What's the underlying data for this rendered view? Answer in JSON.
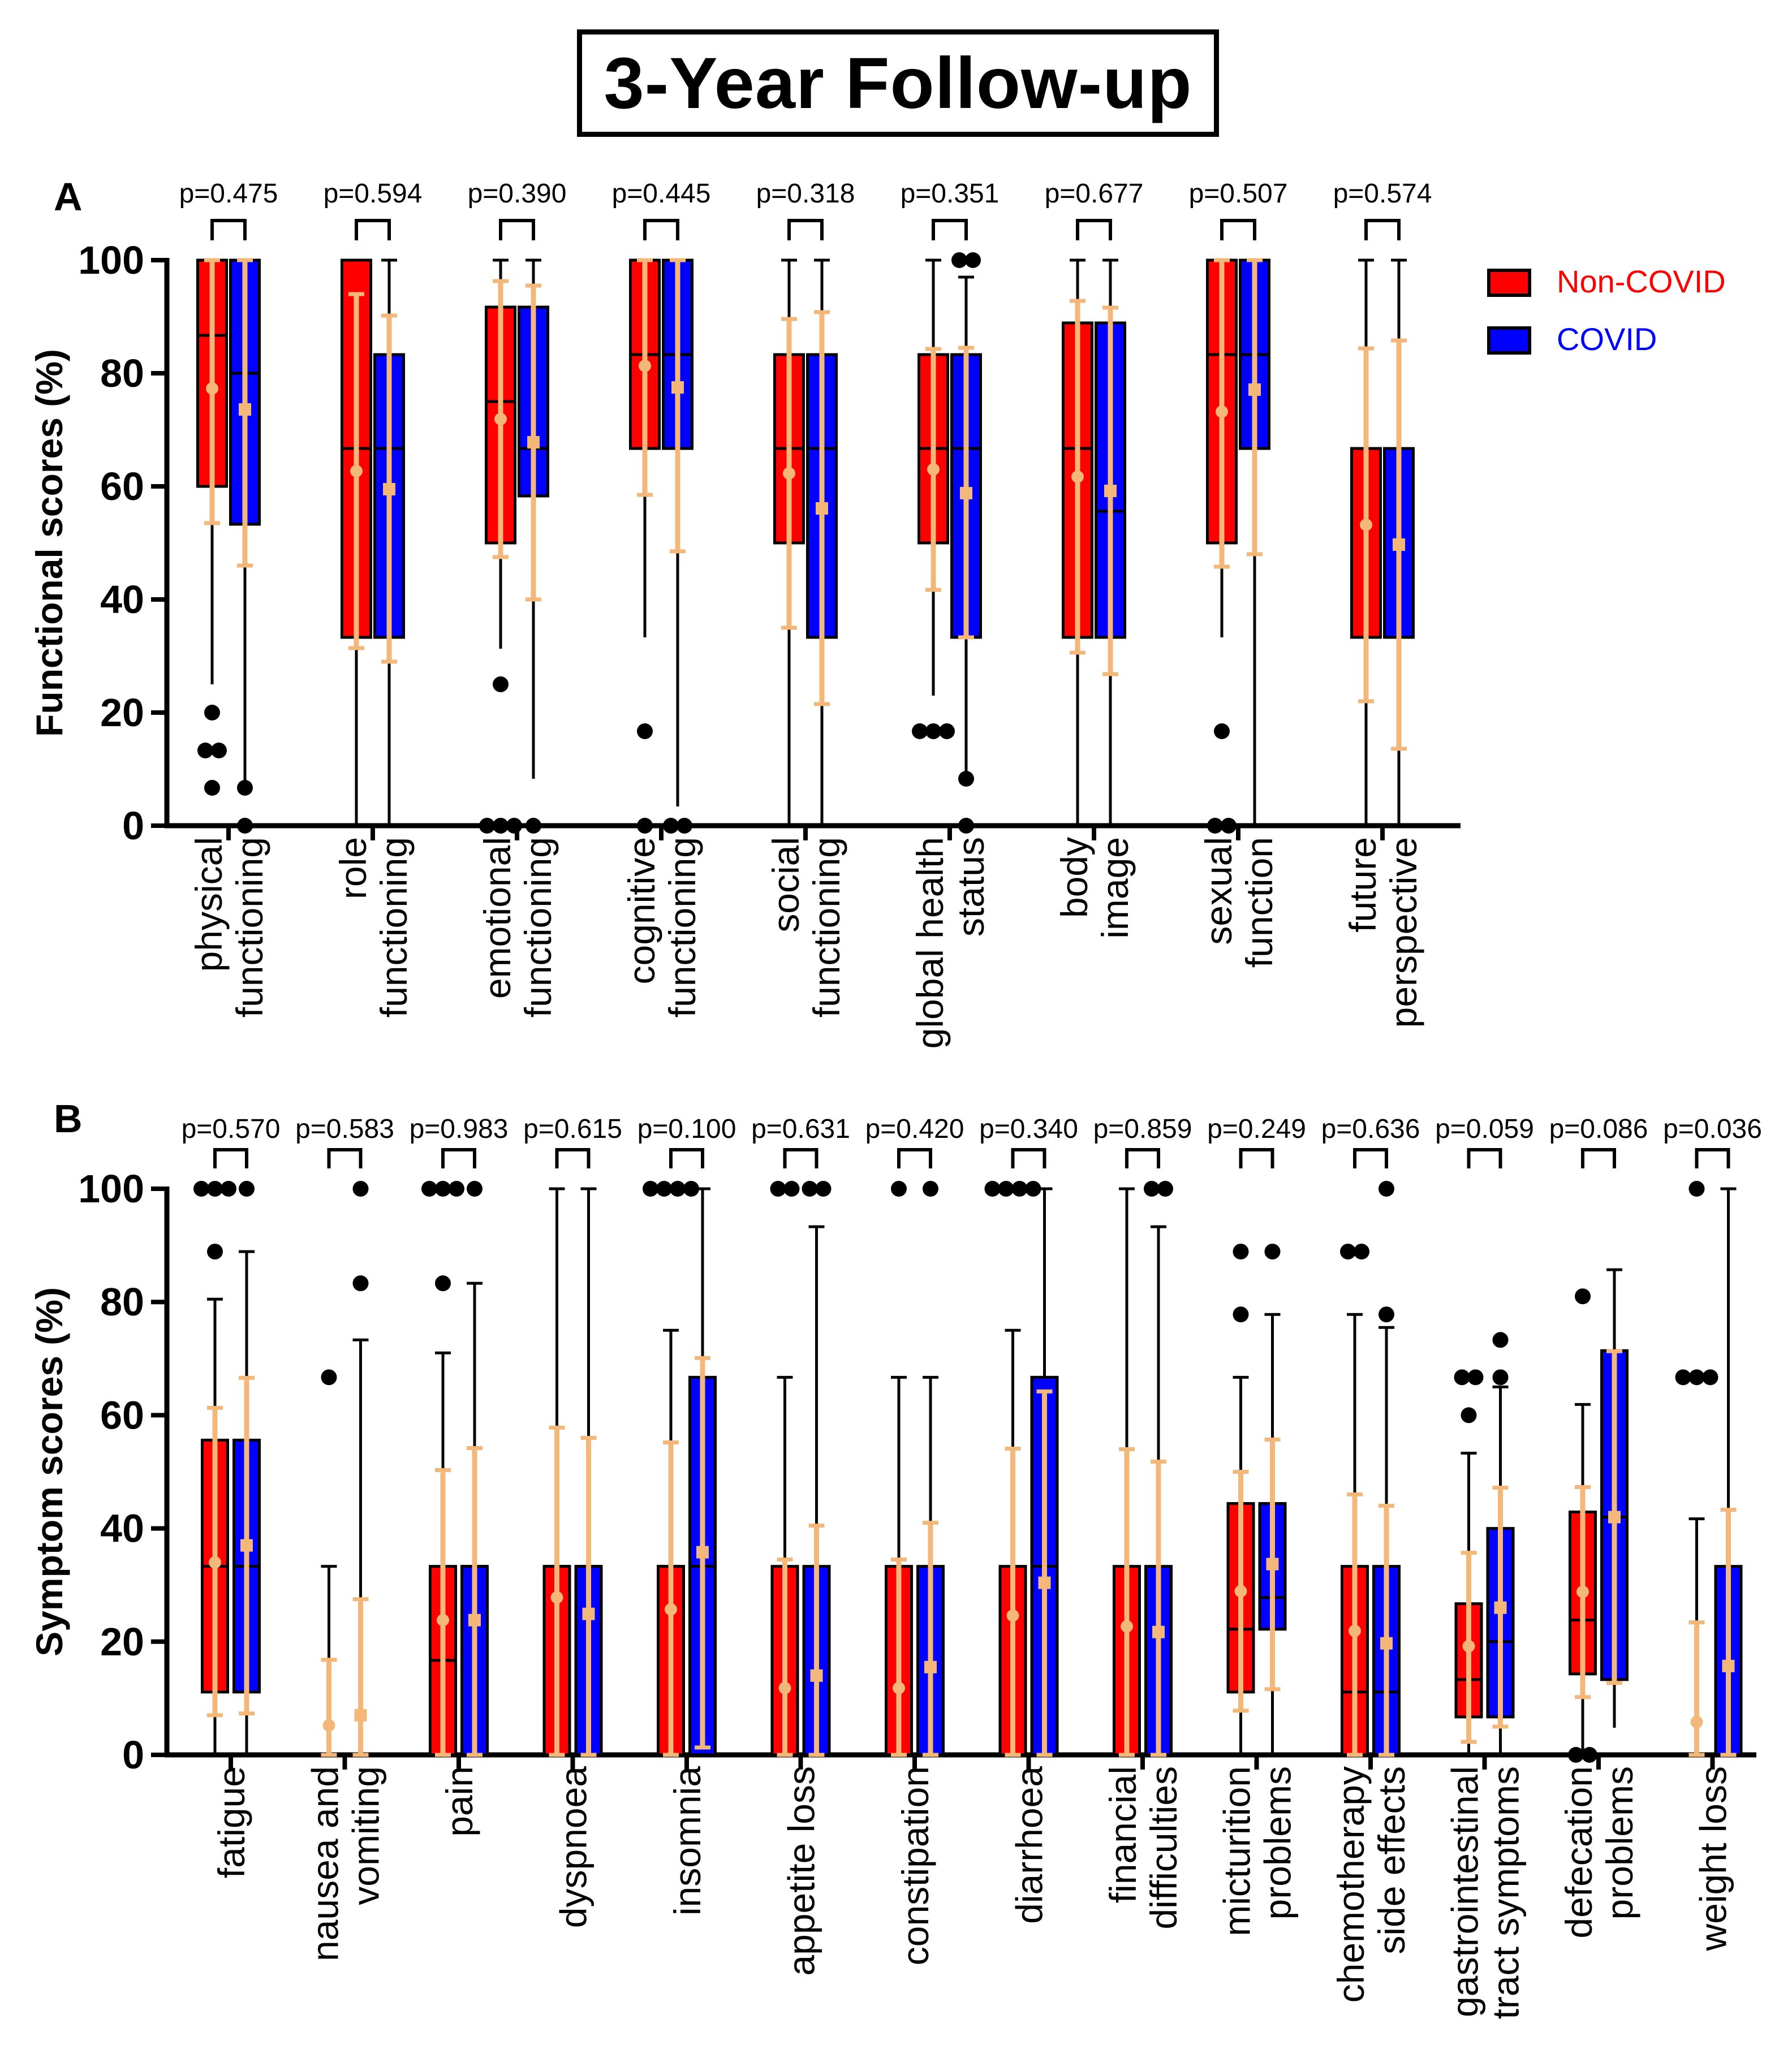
{
  "figure_title": "3-Year Follow-up",
  "colors": {
    "non_covid": "#ff0000",
    "covid": "#0000ff",
    "mean_sd": "#f2b779",
    "whisker": "#000000",
    "outlier": "#000000"
  },
  "legend": {
    "non_covid": "Non-COVID",
    "covid": "COVID"
  },
  "chart_data": [
    {
      "panel": "A",
      "type": "box",
      "ylabel": "Functional scores (%)",
      "ylim": [
        0,
        100
      ],
      "yticks": [
        0,
        20,
        40,
        60,
        80,
        100
      ],
      "legend_position": "top-right",
      "categories": [
        {
          "label": [
            "physical",
            "functioning"
          ],
          "p": "p=0.475",
          "non_covid": {
            "q1": 60,
            "median": 86.7,
            "q3": 100,
            "wlo": 25,
            "whi": 100,
            "mean": 77.3,
            "sdlo": 53.5,
            "sdhi": 100,
            "outliers": [
              20,
              13.3,
              13.3,
              6.7
            ]
          },
          "covid": {
            "q1": 53.3,
            "median": 80,
            "q3": 100,
            "wlo": 8,
            "whi": 100,
            "mean": 73.6,
            "sdlo": 46,
            "sdhi": 100,
            "outliers": [
              6.7,
              0
            ]
          }
        },
        {
          "label": [
            "role",
            "functioning"
          ],
          "p": "p=0.594",
          "non_covid": {
            "q1": 33.3,
            "median": 66.7,
            "q3": 100,
            "wlo": 0,
            "whi": 100,
            "mean": 62.7,
            "sdlo": 31.4,
            "sdhi": 94,
            "outliers": []
          },
          "covid": {
            "q1": 33.3,
            "median": 66.7,
            "q3": 83.3,
            "wlo": 0,
            "whi": 100,
            "mean": 59.5,
            "sdlo": 29,
            "sdhi": 90.2,
            "outliers": []
          }
        },
        {
          "label": [
            "emotional",
            "functioning"
          ],
          "p": "p=0.390",
          "non_covid": {
            "q1": 50,
            "median": 75,
            "q3": 91.7,
            "wlo": 31.3,
            "whi": 100,
            "mean": 71.9,
            "sdlo": 47.5,
            "sdhi": 96.3,
            "outliers": [
              25,
              0,
              0,
              0
            ]
          },
          "covid": {
            "q1": 58.3,
            "median": 66.7,
            "q3": 91.7,
            "wlo": 8.3,
            "whi": 100,
            "mean": 67.8,
            "sdlo": 40,
            "sdhi": 95.5,
            "outliers": [
              0
            ]
          }
        },
        {
          "label": [
            "cognitive",
            "functioning"
          ],
          "p": "p=0.445",
          "non_covid": {
            "q1": 66.7,
            "median": 83.3,
            "q3": 100,
            "wlo": 33.3,
            "whi": 100,
            "mean": 81.3,
            "sdlo": 58.5,
            "sdhi": 100,
            "outliers": [
              16.7,
              0
            ]
          },
          "covid": {
            "q1": 66.7,
            "median": 83.3,
            "q3": 100,
            "wlo": 3.4,
            "whi": 100,
            "mean": 77.5,
            "sdlo": 48.5,
            "sdhi": 100,
            "outliers": [
              0,
              0
            ]
          }
        },
        {
          "label": [
            "social",
            "functioning"
          ],
          "p": "p=0.318",
          "non_covid": {
            "q1": 50,
            "median": 66.7,
            "q3": 83.3,
            "wlo": 0,
            "whi": 100,
            "mean": 62.3,
            "sdlo": 35,
            "sdhi": 89.6,
            "outliers": []
          },
          "covid": {
            "q1": 33.3,
            "median": 66.7,
            "q3": 83.3,
            "wlo": 0,
            "whi": 100,
            "mean": 56.1,
            "sdlo": 21.5,
            "sdhi": 90.8,
            "outliers": []
          }
        },
        {
          "label": [
            "global health",
            "status"
          ],
          "p": "p=0.351",
          "non_covid": {
            "q1": 50,
            "median": 66.7,
            "q3": 83.3,
            "wlo": 23,
            "whi": 100,
            "mean": 63,
            "sdlo": 41.7,
            "sdhi": 84.3,
            "outliers": [
              16.7,
              16.7,
              16.7
            ]
          },
          "covid": {
            "q1": 33.3,
            "median": 66.7,
            "q3": 83.3,
            "wlo": 9,
            "whi": 97,
            "mean": 58.8,
            "sdlo": 33.3,
            "sdhi": 84.5,
            "outliers": [
              100,
              100,
              8.3,
              0
            ]
          }
        },
        {
          "label": [
            "body",
            "image"
          ],
          "p": "p=0.677",
          "non_covid": {
            "q1": 33.3,
            "median": 66.7,
            "q3": 88.9,
            "wlo": 0,
            "whi": 100,
            "mean": 61.7,
            "sdlo": 30.6,
            "sdhi": 92.8,
            "outliers": []
          },
          "covid": {
            "q1": 33.3,
            "median": 55.6,
            "q3": 88.9,
            "wlo": 0,
            "whi": 100,
            "mean": 59.2,
            "sdlo": 26.8,
            "sdhi": 91.6,
            "outliers": []
          }
        },
        {
          "label": [
            "sexual",
            "function"
          ],
          "p": "p=0.507",
          "non_covid": {
            "q1": 50,
            "median": 83.3,
            "q3": 100,
            "wlo": 33.3,
            "whi": 100,
            "mean": 73.2,
            "sdlo": 45.8,
            "sdhi": 100,
            "outliers": [
              16.7,
              0,
              0
            ]
          },
          "covid": {
            "q1": 66.7,
            "median": 83.3,
            "q3": 100,
            "wlo": 0,
            "whi": 100,
            "mean": 77.1,
            "sdlo": 48,
            "sdhi": 100,
            "outliers": []
          }
        },
        {
          "label": [
            "future",
            "perspective"
          ],
          "p": "p=0.574",
          "non_covid": {
            "q1": 33.3,
            "median": 66.7,
            "q3": 66.7,
            "wlo": 0,
            "whi": 100,
            "mean": 53.2,
            "sdlo": 22,
            "sdhi": 84.4,
            "outliers": []
          },
          "covid": {
            "q1": 33.3,
            "median": 66.7,
            "q3": 66.7,
            "wlo": 0,
            "whi": 100,
            "mean": 49.7,
            "sdlo": 13.6,
            "sdhi": 85.8,
            "outliers": []
          }
        }
      ]
    },
    {
      "panel": "B",
      "type": "box",
      "ylabel": "Symptom scores (%)",
      "ylim": [
        0,
        100
      ],
      "yticks": [
        0,
        20,
        40,
        60,
        80,
        100
      ],
      "categories": [
        {
          "label": [
            "fatigue"
          ],
          "p": "p=0.570",
          "non_covid": {
            "q1": 11.1,
            "median": 33.3,
            "q3": 55.6,
            "wlo": 0,
            "whi": 80.5,
            "mean": 34,
            "sdlo": 7,
            "sdhi": 61.3,
            "outliers": [
              100,
              100,
              100,
              88.9
            ]
          },
          "covid": {
            "q1": 11.1,
            "median": 33.3,
            "q3": 55.6,
            "wlo": 0,
            "whi": 88.9,
            "mean": 37,
            "sdlo": 7.3,
            "sdhi": 66.6,
            "outliers": [
              100
            ]
          }
        },
        {
          "label": [
            "nausea and",
            "vomiting"
          ],
          "p": "p=0.583",
          "non_covid": {
            "q1": 0,
            "median": 0,
            "q3": 0,
            "wlo": 0,
            "whi": 33.3,
            "mean": 5.2,
            "sdlo": 0,
            "sdhi": 16.8,
            "outliers": [
              66.7
            ]
          },
          "covid": {
            "q1": 0,
            "median": 0,
            "q3": 0,
            "wlo": 0,
            "whi": 73.3,
            "mean": 7,
            "sdlo": 0,
            "sdhi": 27.5,
            "outliers": [
              100,
              83.3
            ]
          }
        },
        {
          "label": [
            "pain"
          ],
          "p": "p=0.983",
          "non_covid": {
            "q1": 0,
            "median": 16.7,
            "q3": 33.3,
            "wlo": 0,
            "whi": 71,
            "mean": 23.8,
            "sdlo": 0,
            "sdhi": 50.3,
            "outliers": [
              100,
              100,
              100,
              83.3
            ]
          },
          "covid": {
            "q1": 0,
            "median": 33.3,
            "q3": 33.3,
            "wlo": 0,
            "whi": 83.3,
            "mean": 23.8,
            "sdlo": 0,
            "sdhi": 54.2,
            "outliers": [
              100
            ]
          }
        },
        {
          "label": [
            "dyspnoea"
          ],
          "p": "p=0.615",
          "non_covid": {
            "q1": 0,
            "median": 33.3,
            "q3": 33.3,
            "wlo": 0,
            "whi": 100,
            "mean": 27.8,
            "sdlo": 0,
            "sdhi": 57.8,
            "outliers": []
          },
          "covid": {
            "q1": 0,
            "median": 33.3,
            "q3": 33.3,
            "wlo": 0,
            "whi": 100,
            "mean": 24.9,
            "sdlo": 0,
            "sdhi": 56,
            "outliers": []
          }
        },
        {
          "label": [
            "insomnia"
          ],
          "p": "p=0.100",
          "non_covid": {
            "q1": 0,
            "median": 33.3,
            "q3": 33.3,
            "wlo": 0,
            "whi": 75,
            "mean": 25.7,
            "sdlo": 0,
            "sdhi": 55.2,
            "outliers": [
              100,
              100,
              100,
              100
            ]
          },
          "covid": {
            "q1": 0,
            "median": 33.3,
            "q3": 66.7,
            "wlo": 0,
            "whi": 100,
            "mean": 35.8,
            "sdlo": 1.3,
            "sdhi": 70.1,
            "outliers": []
          }
        },
        {
          "label": [
            "appetite loss"
          ],
          "p": "p=0.631",
          "non_covid": {
            "q1": 0,
            "median": 0,
            "q3": 33.3,
            "wlo": 0,
            "whi": 66.7,
            "mean": 11.8,
            "sdlo": 0,
            "sdhi": 34.5,
            "outliers": [
              100,
              100
            ]
          },
          "covid": {
            "q1": 0,
            "median": 0,
            "q3": 33.3,
            "wlo": 0,
            "whi": 93.3,
            "mean": 14,
            "sdlo": 0,
            "sdhi": 40.5,
            "outliers": [
              100,
              100
            ]
          }
        },
        {
          "label": [
            "constipation"
          ],
          "p": "p=0.420",
          "non_covid": {
            "q1": 0,
            "median": 0,
            "q3": 33.3,
            "wlo": 0,
            "whi": 66.7,
            "mean": 11.8,
            "sdlo": 0,
            "sdhi": 34.5,
            "outliers": [
              100
            ]
          },
          "covid": {
            "q1": 0,
            "median": 0,
            "q3": 33.3,
            "wlo": 0,
            "whi": 66.7,
            "mean": 15.5,
            "sdlo": 0,
            "sdhi": 41,
            "outliers": [
              100
            ]
          }
        },
        {
          "label": [
            "diarrhoea"
          ],
          "p": "p=0.340",
          "non_covid": {
            "q1": 0,
            "median": 0,
            "q3": 33.3,
            "wlo": 0,
            "whi": 75,
            "mean": 24.6,
            "sdlo": 0,
            "sdhi": 54.1,
            "outliers": [
              100,
              100,
              100,
              100
            ]
          },
          "covid": {
            "q1": 0,
            "median": 33.3,
            "q3": 66.7,
            "wlo": 0,
            "whi": 100,
            "mean": 30.4,
            "sdlo": 0,
            "sdhi": 64.2,
            "outliers": []
          }
        },
        {
          "label": [
            "financial",
            "difficulties"
          ],
          "p": "p=0.859",
          "non_covid": {
            "q1": 0,
            "median": 0,
            "q3": 33.3,
            "wlo": 0,
            "whi": 100,
            "mean": 22.7,
            "sdlo": 0,
            "sdhi": 54,
            "outliers": []
          },
          "covid": {
            "q1": 0,
            "median": 0,
            "q3": 33.3,
            "wlo": 0,
            "whi": 93.3,
            "mean": 21.7,
            "sdlo": 0,
            "sdhi": 51.8,
            "outliers": [
              100,
              100
            ]
          }
        },
        {
          "label": [
            "micturition",
            "problems"
          ],
          "p": "p=0.249",
          "non_covid": {
            "q1": 11.1,
            "median": 22.2,
            "q3": 44.4,
            "wlo": 0,
            "whi": 66.7,
            "mean": 28.9,
            "sdlo": 7.8,
            "sdhi": 50,
            "outliers": [
              88.9,
              77.8
            ]
          },
          "covid": {
            "q1": 22.2,
            "median": 27.8,
            "q3": 44.4,
            "wlo": 0,
            "whi": 77.8,
            "mean": 33.7,
            "sdlo": 11.6,
            "sdhi": 55.7,
            "outliers": [
              88.9
            ]
          }
        },
        {
          "label": [
            "chemotherapy",
            "side effects"
          ],
          "p": "p=0.636",
          "non_covid": {
            "q1": 0,
            "median": 11.1,
            "q3": 33.3,
            "wlo": 0,
            "whi": 77.8,
            "mean": 21.9,
            "sdlo": 0,
            "sdhi": 46,
            "outliers": [
              88.9,
              88.9
            ]
          },
          "covid": {
            "q1": 0,
            "median": 11.1,
            "q3": 33.3,
            "wlo": 0,
            "whi": 75.5,
            "mean": 19.7,
            "sdlo": 0,
            "sdhi": 44,
            "outliers": [
              100,
              77.8
            ]
          }
        },
        {
          "label": [
            "gastrointestinal",
            "tract symptoms"
          ],
          "p": "p=0.059",
          "non_covid": {
            "q1": 6.7,
            "median": 13.3,
            "q3": 26.7,
            "wlo": 0,
            "whi": 53.3,
            "mean": 19.2,
            "sdlo": 2.3,
            "sdhi": 35.7,
            "outliers": [
              66.7,
              66.7,
              60
            ]
          },
          "covid": {
            "q1": 6.7,
            "median": 20,
            "q3": 40,
            "wlo": 0,
            "whi": 65,
            "mean": 26,
            "sdlo": 5,
            "sdhi": 47.2,
            "outliers": [
              73.3,
              66.7
            ]
          }
        },
        {
          "label": [
            "defecation",
            "problems"
          ],
          "p": "p=0.086",
          "non_covid": {
            "q1": 14.3,
            "median": 23.8,
            "q3": 42.9,
            "wlo": 0,
            "whi": 61.9,
            "mean": 28.8,
            "sdlo": 10.2,
            "sdhi": 47.3,
            "outliers": [
              81,
              0,
              0
            ]
          },
          "covid": {
            "q1": 13.3,
            "median": 42,
            "q3": 71.4,
            "wlo": 4.8,
            "whi": 85.7,
            "mean": 42,
            "sdlo": 12.7,
            "sdhi": 71.3,
            "outliers": []
          }
        },
        {
          "label": [
            "weight loss"
          ],
          "p": "p=0.036",
          "non_covid": {
            "q1": 0,
            "median": 0,
            "q3": 0,
            "wlo": 0,
            "whi": 41.7,
            "mean": 5.8,
            "sdlo": 0,
            "sdhi": 23.4,
            "outliers": [
              100,
              66.7,
              66.7,
              66.7
            ]
          },
          "covid": {
            "q1": 0,
            "median": 0,
            "q3": 33.3,
            "wlo": 0,
            "whi": 100,
            "mean": 15.7,
            "sdlo": 0,
            "sdhi": 43.3,
            "outliers": []
          }
        }
      ]
    }
  ]
}
